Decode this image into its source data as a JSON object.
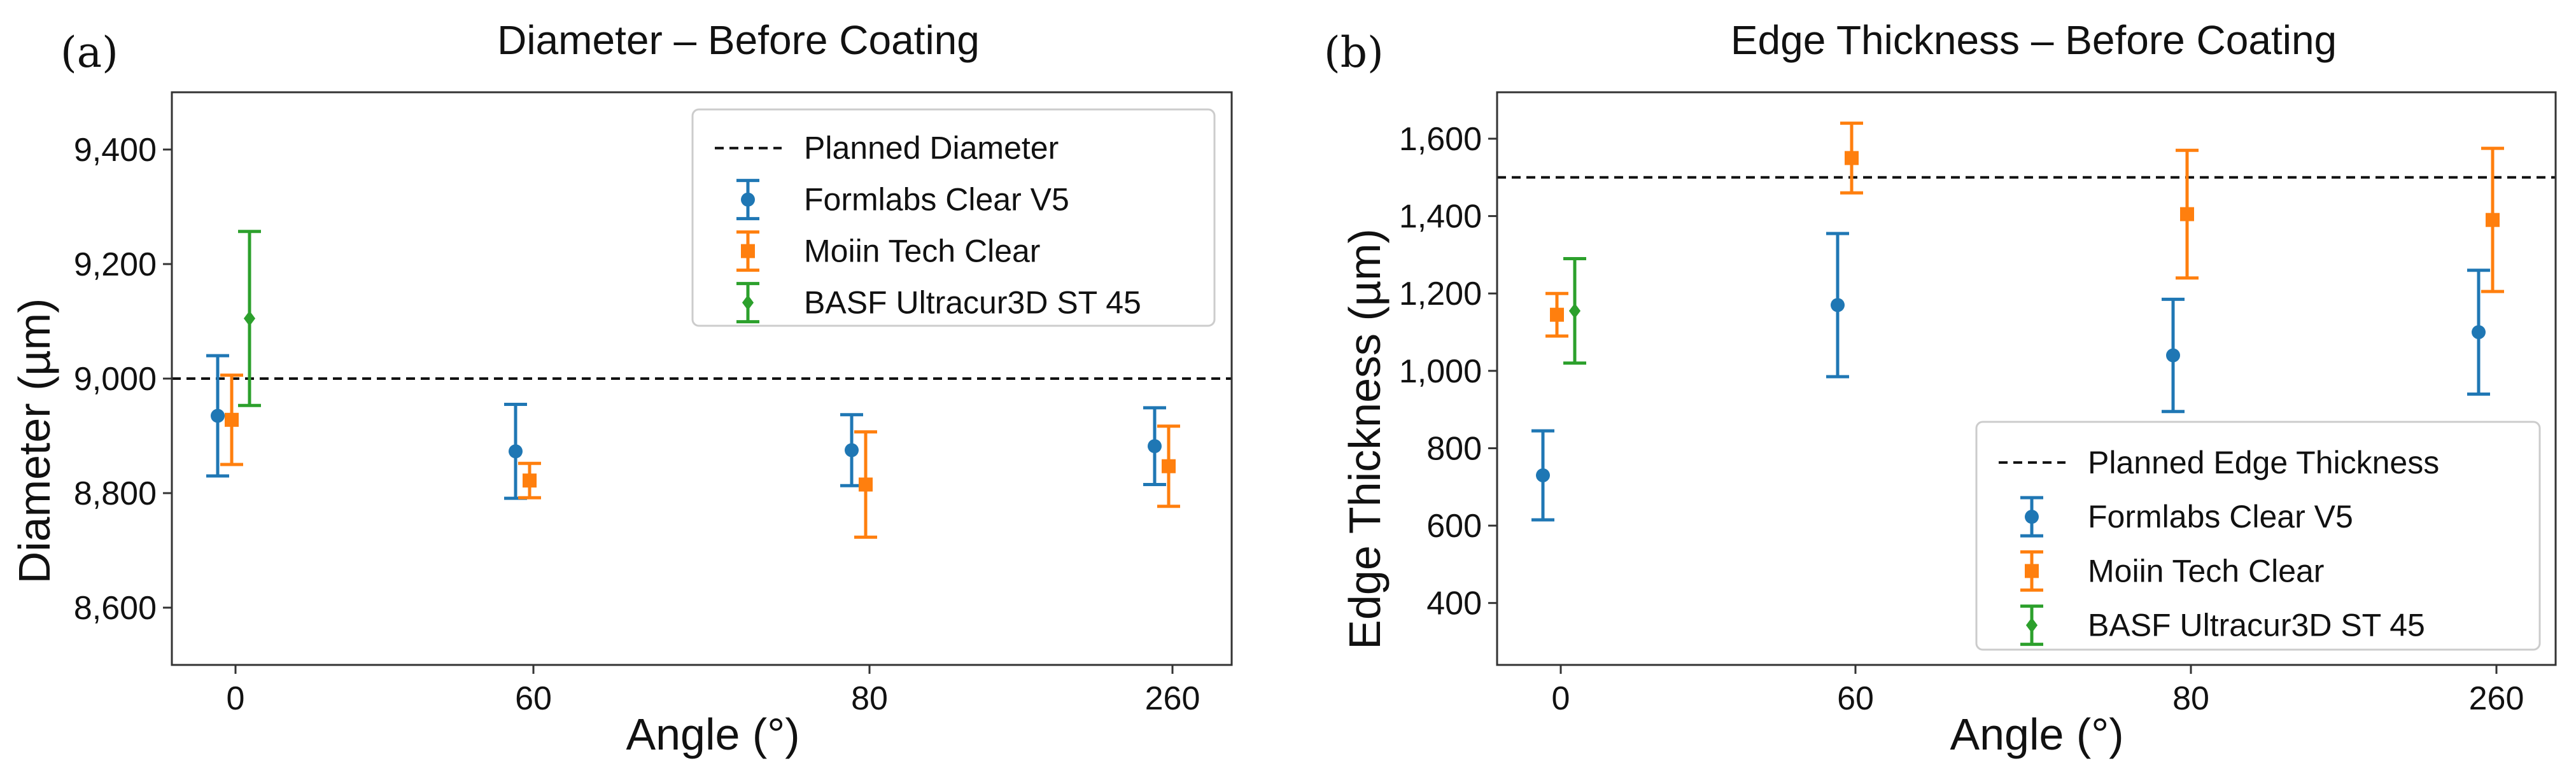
{
  "colors": {
    "series": [
      "#1f77b4",
      "#ff7f0e",
      "#2ca02c"
    ],
    "planned": "#111111",
    "frame": "#333333",
    "legend_border": "#cccccc"
  },
  "chart_data": [
    {
      "type": "scatter",
      "panel_label": "(a)",
      "title": "Diameter – Before Coating",
      "xlabel": "Angle (°)",
      "ylabel": "Diameter (µm)",
      "categories": [
        "0",
        "60",
        "80",
        "260"
      ],
      "ylim": [
        8500,
        9500
      ],
      "yticks": [
        8600,
        8800,
        9000,
        9200,
        9400
      ],
      "ytick_labels": [
        "8,600",
        "8,800",
        "9,000",
        "9,200",
        "9,400"
      ],
      "legend_position": "top-right",
      "planned": {
        "label": "Planned Diameter",
        "value": 9000
      },
      "series": [
        {
          "name": "Formlabs Clear V5",
          "marker": "circle",
          "categories": [
            "0",
            "60",
            "80",
            "260"
          ],
          "values": [
            8935,
            8873,
            8875,
            8882
          ],
          "errors": [
            105,
            82,
            62,
            67
          ]
        },
        {
          "name": "Moiin Tech Clear",
          "marker": "square",
          "categories": [
            "0",
            "60",
            "80",
            "260"
          ],
          "values": [
            8928,
            8822,
            8815,
            8847
          ],
          "errors": [
            78,
            30,
            92,
            70
          ]
        },
        {
          "name": "BASF Ultracur3D ST 45",
          "marker": "diamond",
          "categories": [
            "0"
          ],
          "values": [
            9105
          ],
          "errors": [
            152
          ]
        }
      ]
    },
    {
      "type": "scatter",
      "panel_label": "(b)",
      "title": "Edge Thickness – Before Coating",
      "xlabel": "Angle (°)",
      "ylabel": "Edge Thickness (µm)",
      "categories": [
        "0",
        "60",
        "80",
        "260"
      ],
      "ylim": [
        240,
        1720
      ],
      "yticks": [
        400,
        600,
        800,
        1000,
        1200,
        1400,
        1600
      ],
      "ytick_labels": [
        "400",
        "600",
        "800",
        "1,000",
        "1,200",
        "1,400",
        "1,600"
      ],
      "legend_position": "bottom-right",
      "planned": {
        "label": "Planned Edge Thickness",
        "value": 1500
      },
      "series": [
        {
          "name": "Formlabs Clear V5",
          "marker": "circle",
          "categories": [
            "0",
            "60",
            "80",
            "260"
          ],
          "values": [
            730,
            1170,
            1040,
            1100
          ],
          "errors": [
            115,
            185,
            145,
            160
          ]
        },
        {
          "name": "Moiin Tech Clear",
          "marker": "square",
          "categories": [
            "0",
            "60",
            "80",
            "260"
          ],
          "values": [
            1145,
            1550,
            1405,
            1390
          ],
          "errors": [
            55,
            90,
            165,
            185
          ]
        },
        {
          "name": "BASF Ultracur3D ST 45",
          "marker": "diamond",
          "categories": [
            "0"
          ],
          "values": [
            1155
          ],
          "errors": [
            135
          ]
        }
      ]
    }
  ]
}
